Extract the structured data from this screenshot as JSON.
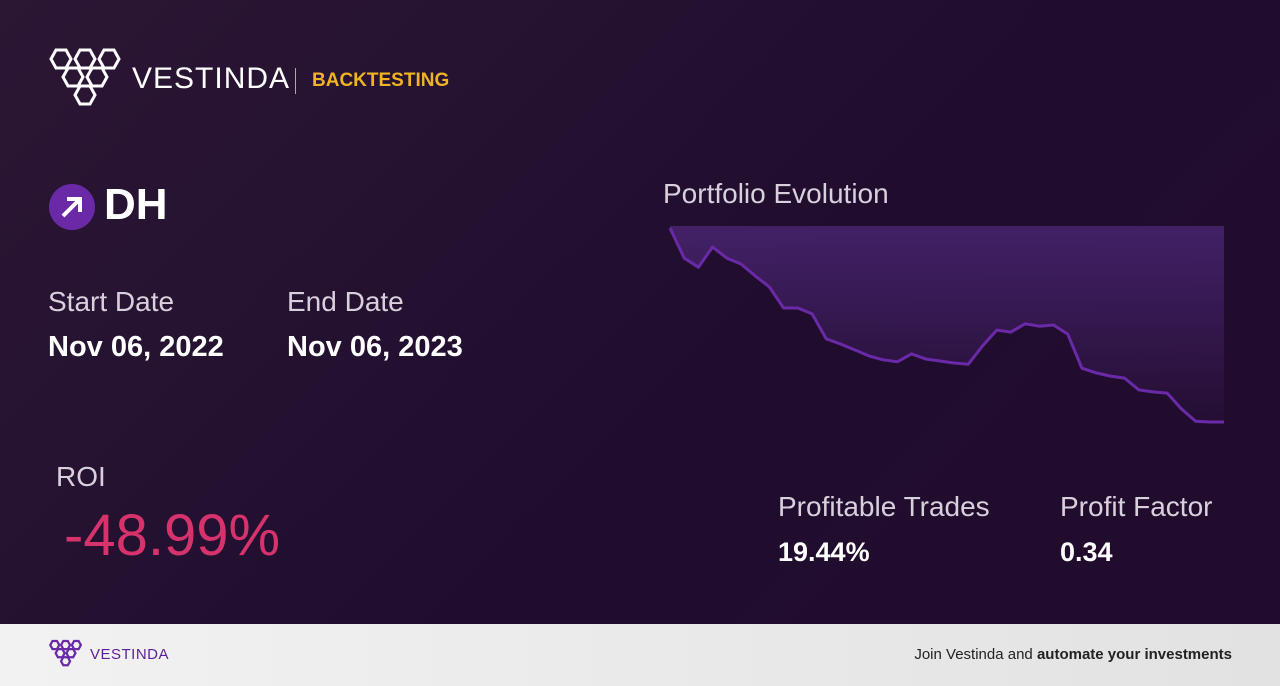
{
  "header": {
    "brand": "VESTINDA",
    "section": "BACKTESTING"
  },
  "ticker": "DH",
  "dates": {
    "start_label": "Start Date",
    "start_date": "Nov 06, 2022",
    "end_label": "End Date",
    "end_date": "Nov 06, 2023"
  },
  "roi": {
    "label": "ROI",
    "value": "-48.99%"
  },
  "chart_data": {
    "type": "line",
    "title": "Portfolio Evolution",
    "color": "#6a2aa8",
    "values": [
      100,
      92.4,
      90.1,
      95.2,
      92.4,
      90.9,
      87.9,
      85.1,
      79.8,
      79.8,
      78.3,
      72.0,
      70.7,
      69.2,
      67.7,
      66.7,
      66.2,
      68.2,
      66.9,
      66.4,
      65.9,
      65.6,
      70.2,
      74.2,
      73.7,
      75.8,
      75.2,
      75.5,
      73.2,
      64.6,
      63.4,
      62.6,
      62.1,
      59.1,
      58.6,
      58.3,
      54.3,
      51.2,
      51.0,
      51.0
    ],
    "ylim": [
      51,
      100
    ]
  },
  "stats": [
    {
      "label": "Profitable Trades",
      "value": "19.44%"
    },
    {
      "label": "Profit Factor",
      "value": "0.34"
    }
  ],
  "footer": {
    "brand": "VESTINDA",
    "text": "Join Vestinda and ",
    "text_bold": "automate your investments"
  }
}
